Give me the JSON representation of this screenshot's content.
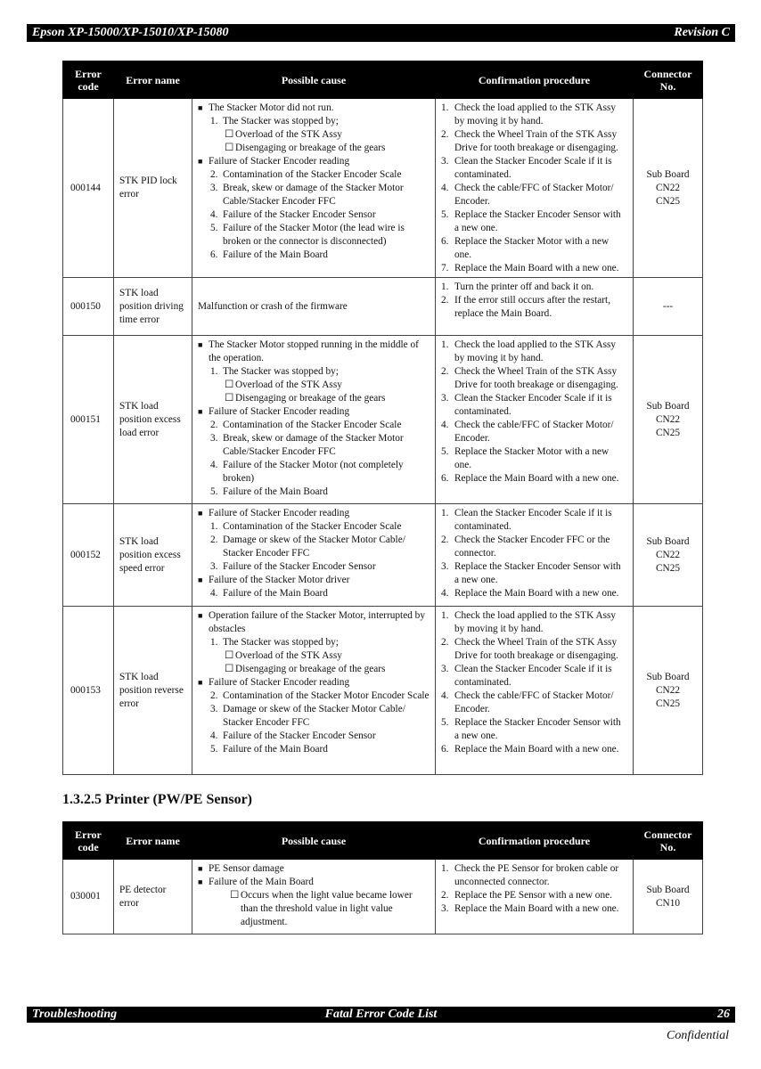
{
  "header": {
    "title": "Epson XP-15000/XP-15010/XP-15080",
    "revision": "Revision C"
  },
  "columns": [
    "Error code",
    "Error name",
    "Possible cause",
    "Confirmation procedure",
    "Connector No."
  ],
  "table1": [
    {
      "code": "000144",
      "name": "STK PID lock error",
      "connector": [
        "Sub Board",
        "CN22",
        "CN25"
      ],
      "cause": [
        {
          "m": "■",
          "t": "The Stacker Motor did not run.",
          "l": 0
        },
        {
          "m": "1.",
          "t": "The Stacker was stopped by;",
          "l": 1
        },
        {
          "m": "☐",
          "t": "Overload of the STK Assy",
          "l": 2
        },
        {
          "m": "☐",
          "t": "Disengaging or breakage of the gears",
          "l": 2
        },
        {
          "m": "■",
          "t": "Failure of Stacker Encoder reading",
          "l": 0
        },
        {
          "m": "2.",
          "t": "Contamination of the Stacker Encoder Scale",
          "l": 1
        },
        {
          "m": "3.",
          "t": "Break, skew or damage of the Stacker Motor Cable/Stacker Encoder FFC",
          "l": 1
        },
        {
          "m": "4.",
          "t": "Failure of the Stacker Encoder Sensor",
          "l": 1
        },
        {
          "m": "5.",
          "t": "Failure of the Stacker Motor (the lead wire is broken or the connector is disconnected)",
          "l": 1
        },
        {
          "m": "6.",
          "t": "Failure of the Main Board",
          "l": 1
        }
      ],
      "procedure": [
        {
          "m": "1.",
          "t": "Check the load applied to the STK Assy by moving it by hand."
        },
        {
          "m": "2.",
          "t": "Check the Wheel Train of the STK Assy Drive for tooth breakage or disengaging."
        },
        {
          "m": "3.",
          "t": "Clean the Stacker Encoder Scale if it is contaminated."
        },
        {
          "m": "4.",
          "t": "Check the cable/FFC of Stacker Motor/ Encoder."
        },
        {
          "m": "5.",
          "t": "Replace the Stacker Encoder  Sensor with a new one."
        },
        {
          "m": "6.",
          "t": "Replace the Stacker Motor with a new one."
        },
        {
          "m": "7.",
          "t": "Replace the Main Board with a new one."
        }
      ]
    },
    {
      "code": "000150",
      "name": "STK load position driving time error",
      "connector": [
        "---"
      ],
      "cause_text": "Malfunction or crash of the firmware",
      "procedure": [
        {
          "m": "1.",
          "t": "Turn the printer off and back it on."
        },
        {
          "m": "2.",
          "t": "If the error still occurs after the restart, replace the Main Board."
        }
      ]
    },
    {
      "code": "000151",
      "name": "STK load position excess load error",
      "connector": [
        "Sub Board",
        "CN22",
        "CN25"
      ],
      "cause": [
        {
          "m": "■",
          "t": "The Stacker Motor stopped running in the middle of the operation.",
          "l": 0
        },
        {
          "m": "1.",
          "t": "The Stacker was stopped by;",
          "l": 1
        },
        {
          "m": "☐",
          "t": "Overload of the STK Assy",
          "l": 2
        },
        {
          "m": "☐",
          "t": "Disengaging or breakage of the gears",
          "l": 2
        },
        {
          "m": "■",
          "t": "Failure of Stacker Encoder reading",
          "l": 0
        },
        {
          "m": "2.",
          "t": "Contamination of the Stacker Encoder Scale",
          "l": 1
        },
        {
          "m": "3.",
          "t": "Break, skew or damage of the Stacker Motor Cable/Stacker Encoder FFC",
          "l": 1
        },
        {
          "m": "4.",
          "t": "Failure of the Stacker Motor (not completely broken)",
          "l": 1
        },
        {
          "m": "5.",
          "t": "Failure of the Main Board",
          "l": 1
        }
      ],
      "procedure": [
        {
          "m": "1.",
          "t": "Check the load applied to the STK Assy by moving it by hand."
        },
        {
          "m": "2.",
          "t": "Check the Wheel Train of the STK Assy Drive for tooth breakage or disengaging."
        },
        {
          "m": "3.",
          "t": "Clean the Stacker Encoder Scale if it is contaminated."
        },
        {
          "m": "4.",
          "t": "Check the cable/FFC of Stacker Motor/ Encoder."
        },
        {
          "m": "5.",
          "t": "Replace the Stacker Motor with a new one."
        },
        {
          "m": "6.",
          "t": "Replace the Main Board with a new one."
        }
      ]
    },
    {
      "code": "000152",
      "name": "STK load position excess speed error",
      "connector": [
        "Sub Board",
        "CN22",
        "CN25"
      ],
      "cause": [
        {
          "m": "■",
          "t": "Failure of Stacker Encoder  reading",
          "l": 0
        },
        {
          "m": "1.",
          "t": "Contamination of the Stacker Encoder Scale",
          "l": 1
        },
        {
          "m": "2.",
          "t": "Damage or skew of the Stacker Motor Cable/ Stacker Encoder FFC",
          "l": 1
        },
        {
          "m": "3.",
          "t": "Failure of the Stacker Encoder Sensor",
          "l": 1
        },
        {
          "m": "■",
          "t": "Failure of the Stacker Motor driver",
          "l": 0
        },
        {
          "m": "4.",
          "t": "Failure of the Main Board",
          "l": 1
        }
      ],
      "procedure": [
        {
          "m": "1.",
          "t": "Clean the Stacker Encoder Scale if it is contaminated."
        },
        {
          "m": "2.",
          "t": "Check the Stacker Encoder FFC or the connector."
        },
        {
          "m": "3.",
          "t": "Replace the Stacker Encoder Sensor with a new one."
        },
        {
          "m": "4.",
          "t": "Replace the Main Board with a new one."
        }
      ]
    },
    {
      "code": "000153",
      "name": "STK load position reverse error",
      "connector": [
        "Sub Board",
        "CN22",
        "CN25"
      ],
      "cause": [
        {
          "m": "■",
          "t": "Operation failure of the Stacker Motor, interrupted by obstacles",
          "l": 0
        },
        {
          "m": "1.",
          "t": "The Stacker was stopped by;",
          "l": 1
        },
        {
          "m": "☐",
          "t": "Overload of the STK Assy",
          "l": 2
        },
        {
          "m": "☐",
          "t": "Disengaging or breakage of the gears",
          "l": 2
        },
        {
          "m": "■",
          "t": "Failure of Stacker Encoder reading",
          "l": 0
        },
        {
          "m": "2.",
          "t": "Contamination of the Stacker Motor Encoder Scale",
          "l": 1
        },
        {
          "m": "3.",
          "t": "Damage or skew of the Stacker Motor Cable/ Stacker Encoder FFC",
          "l": 1
        },
        {
          "m": "4.",
          "t": "Failure of the Stacker Encoder Sensor",
          "l": 1
        },
        {
          "m": "5.",
          "t": "Failure of the Main Board",
          "l": 1
        }
      ],
      "procedure": [
        {
          "m": "1.",
          "t": "Check the load applied to the STK Assy by moving it by hand."
        },
        {
          "m": "2.",
          "t": "Check the Wheel Train of the STK Assy Drive for tooth breakage or disengaging."
        },
        {
          "m": "3.",
          "t": "Clean the Stacker Encoder Scale if it is contaminated."
        },
        {
          "m": "4.",
          "t": "Check the cable/FFC of Stacker Motor/ Encoder."
        },
        {
          "m": "5.",
          "t": "Replace the Stacker Encoder Sensor with a new one."
        },
        {
          "m": "6.",
          "t": "Replace the Main Board with a new one."
        }
      ]
    }
  ],
  "section_title": "1.3.2.5  Printer (PW/PE Sensor)",
  "table2": [
    {
      "code": "030001",
      "name": "PE detector error",
      "connector": [
        "Sub Board",
        "CN10"
      ],
      "cause": [
        {
          "m": "■",
          "t": "PE Sensor damage",
          "l": 0
        },
        {
          "m": "■",
          "t": "Failure of the Main Board",
          "l": 0
        },
        {
          "m": "☐",
          "t": "Occurs when the light value became lower than the threshold value in light value adjustment.",
          "l": 3
        }
      ],
      "procedure": [
        {
          "m": "1.",
          "t": "Check the PE Sensor for broken cable or unconnected connector."
        },
        {
          "m": "2.",
          "t": "Replace the PE Sensor with a new one."
        },
        {
          "m": "3.",
          "t": "Replace the Main Board with a new one."
        }
      ]
    }
  ],
  "footer": {
    "left": "Troubleshooting",
    "center": "Fatal Error Code List",
    "page": "26",
    "confidential": "Confidential"
  }
}
